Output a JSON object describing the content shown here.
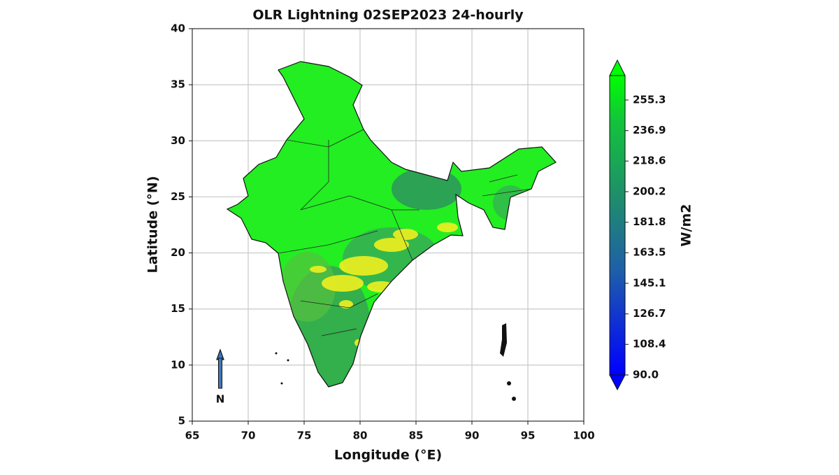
{
  "chart_data": {
    "type": "map",
    "title": "OLR Lightning 02SEP2023 24-hourly",
    "x_label": "Longitude (°E)",
    "y_label": "Latitude (°N)",
    "xlim": [
      65,
      100
    ],
    "xticks": [
      65,
      70,
      75,
      80,
      85,
      90,
      95,
      100
    ],
    "ylim": [
      5,
      40
    ],
    "yticks": [
      5,
      10,
      15,
      20,
      25,
      30,
      35,
      40
    ],
    "grid": true,
    "colorbar": {
      "label": "W/m2",
      "lim": [
        90,
        270
      ],
      "ticks": [
        {
          "value": 90,
          "label": "90.0"
        },
        108.4,
        126.7,
        145.1,
        163.5,
        181.8,
        200.2,
        218.6,
        236.9,
        255.3
      ]
    },
    "north_arrow": "N"
  }
}
